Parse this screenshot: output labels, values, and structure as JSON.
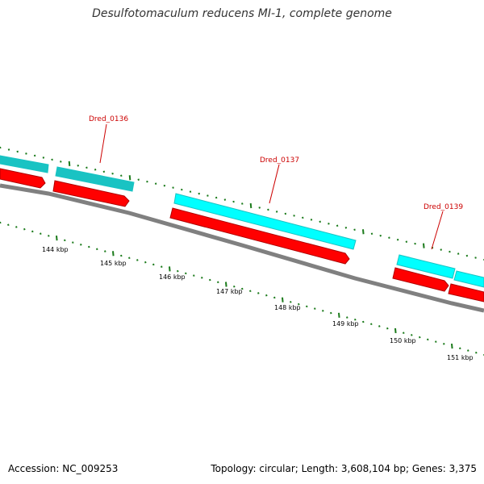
{
  "title": "Desulfotomaculum reducens MI-1, complete genome",
  "footer": {
    "accession": "Accession: NC_009253",
    "stats": "Topology: circular; Length: 3,608,104 bp; Genes: 3,375"
  },
  "colors": {
    "backbone": "#808080",
    "forward_gene": "#00ffff",
    "forward_gene_dark": "#19c3c3",
    "reverse_gene": "#ff0000",
    "tick": "#1a7a1a",
    "gene_label": "#cc0000"
  },
  "scale_labels": [
    "144 kbp",
    "145 kbp",
    "146 kbp",
    "147 kbp",
    "148 kbp",
    "149 kbp",
    "150 kbp",
    "151 kbp"
  ],
  "gene_labels": [
    "Dred_0136",
    "Dred_0137",
    "Dred_0139"
  ]
}
